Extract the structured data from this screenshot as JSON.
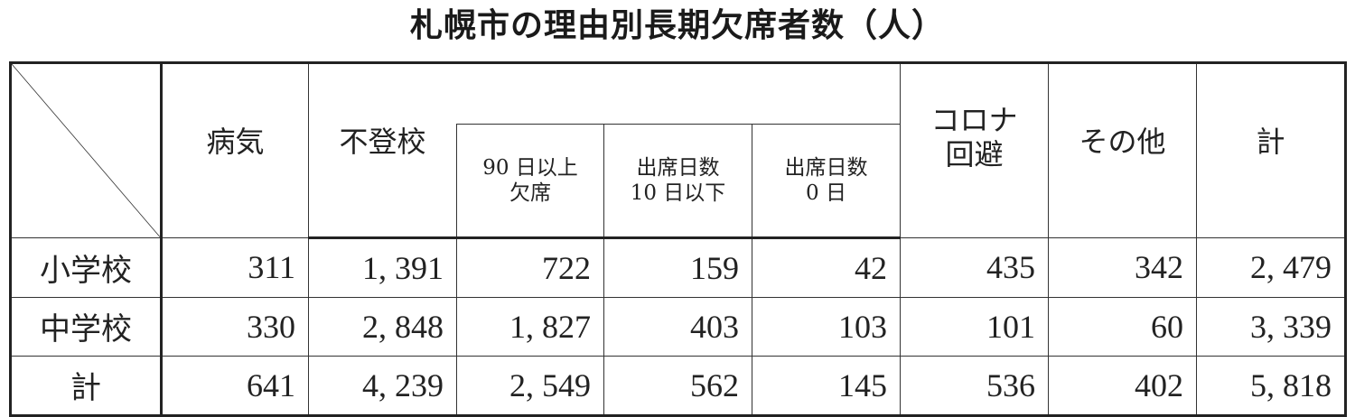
{
  "title": "札幌市の理由別長期欠席者数（人）",
  "columns": {
    "illness": "病気",
    "futoko": "不登校",
    "futoko_sub": [
      "90 日以上\n欠席",
      "出席日数\n10 日以下",
      "出席日数\n0 日"
    ],
    "corona": "コロナ\n回避",
    "other": "その他",
    "total": "計"
  },
  "rows": [
    {
      "label": "小学校",
      "values": [
        "311",
        "1, 391",
        "722",
        "159",
        "42",
        "435",
        "342",
        "2, 479"
      ]
    },
    {
      "label": "中学校",
      "values": [
        "330",
        "2, 848",
        "1, 827",
        "403",
        "103",
        "101",
        "60",
        "3, 339"
      ]
    },
    {
      "label": "計",
      "values": [
        "641",
        "4, 239",
        "2, 549",
        "562",
        "145",
        "536",
        "402",
        "5, 818"
      ]
    }
  ]
}
